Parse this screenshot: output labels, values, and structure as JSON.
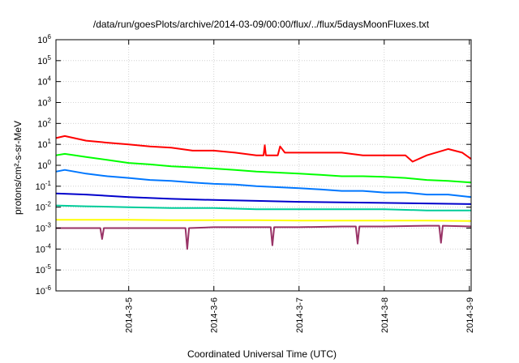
{
  "chart_data": {
    "type": "line",
    "title": "/data/run/goesPlots/archive/2014-03-09/00:00/flux/../flux/5daysMoonFluxes.txt",
    "xlabel": "Coordinated Universal Time (UTC)",
    "ylabel": "protons/cm²-s-sr-MeV",
    "y_scale": "log",
    "ylim": [
      1e-06,
      1000000.0
    ],
    "xlim": [
      "2014-03-04 03:30",
      "2014-03-09 00:30"
    ],
    "grid": true,
    "legend": "none",
    "x_ticks": [
      "2014-3-5",
      "2014-3-6",
      "2014-3-7",
      "2014-3-8",
      "2014-3-9"
    ],
    "y_ticks": [
      {
        "base": "10",
        "exp": "6"
      },
      {
        "base": "10",
        "exp": "5"
      },
      {
        "base": "10",
        "exp": "4"
      },
      {
        "base": "10",
        "exp": "3"
      },
      {
        "base": "10",
        "exp": "2"
      },
      {
        "base": "10",
        "exp": "1"
      },
      {
        "base": "10",
        "exp": "0"
      },
      {
        "base": "10",
        "exp": "-1"
      },
      {
        "base": "10",
        "exp": "-2"
      },
      {
        "base": "10",
        "exp": "-3"
      },
      {
        "base": "10",
        "exp": "-4"
      },
      {
        "base": "10",
        "exp": "-5"
      },
      {
        "base": "10",
        "exp": "-6"
      }
    ],
    "series": [
      {
        "color": "#ff0000",
        "x": [
          "2014-03-04 03:30",
          "2014-03-04 06:00",
          "2014-03-04 12:00",
          "2014-03-04 18:00",
          "2014-03-05 00:00",
          "2014-03-05 06:00",
          "2014-03-05 12:00",
          "2014-03-05 18:00",
          "2014-03-06 00:00",
          "2014-03-06 06:00",
          "2014-03-06 12:00",
          "2014-03-06 14:00",
          "2014-03-06 14:20",
          "2014-03-06 14:40",
          "2014-03-06 18:00",
          "2014-03-06 18:40",
          "2014-03-06 20:00",
          "2014-03-07 00:00",
          "2014-03-07 06:00",
          "2014-03-07 12:00",
          "2014-03-07 18:00",
          "2014-03-08 00:00",
          "2014-03-08 06:00",
          "2014-03-08 08:00",
          "2014-03-08 12:00",
          "2014-03-08 18:00",
          "2014-03-08 22:00",
          "2014-03-09 00:30"
        ],
        "y": [
          20,
          25,
          15,
          12,
          10,
          8,
          7,
          5,
          5,
          4,
          3,
          3,
          9,
          3,
          3,
          8,
          4,
          4,
          4,
          4,
          3,
          3,
          3,
          1.5,
          3,
          6,
          4,
          2
        ]
      },
      {
        "color": "#00ff00",
        "x": [
          "2014-03-04 03:30",
          "2014-03-04 06:00",
          "2014-03-04 12:00",
          "2014-03-04 18:00",
          "2014-03-05 00:00",
          "2014-03-05 06:00",
          "2014-03-05 12:00",
          "2014-03-05 18:00",
          "2014-03-06 00:00",
          "2014-03-06 06:00",
          "2014-03-06 12:00",
          "2014-03-06 18:00",
          "2014-03-07 00:00",
          "2014-03-07 06:00",
          "2014-03-07 12:00",
          "2014-03-07 18:00",
          "2014-03-08 00:00",
          "2014-03-08 06:00",
          "2014-03-08 12:00",
          "2014-03-08 18:00",
          "2014-03-09 00:30"
        ],
        "y": [
          3,
          3.5,
          2.5,
          1.8,
          1.3,
          1.1,
          0.9,
          0.8,
          0.7,
          0.6,
          0.5,
          0.45,
          0.4,
          0.35,
          0.3,
          0.3,
          0.28,
          0.25,
          0.2,
          0.18,
          0.15
        ]
      },
      {
        "color": "#0077ff",
        "x": [
          "2014-03-04 03:30",
          "2014-03-04 06:00",
          "2014-03-04 12:00",
          "2014-03-04 18:00",
          "2014-03-05 00:00",
          "2014-03-05 06:00",
          "2014-03-05 12:00",
          "2014-03-05 18:00",
          "2014-03-06 00:00",
          "2014-03-06 06:00",
          "2014-03-06 12:00",
          "2014-03-06 18:00",
          "2014-03-07 00:00",
          "2014-03-07 06:00",
          "2014-03-07 12:00",
          "2014-03-07 18:00",
          "2014-03-08 00:00",
          "2014-03-08 06:00",
          "2014-03-08 12:00",
          "2014-03-08 18:00",
          "2014-03-09 00:30"
        ],
        "y": [
          0.5,
          0.6,
          0.4,
          0.3,
          0.25,
          0.2,
          0.18,
          0.15,
          0.13,
          0.12,
          0.1,
          0.09,
          0.08,
          0.07,
          0.06,
          0.06,
          0.05,
          0.05,
          0.04,
          0.04,
          0.03
        ]
      },
      {
        "color": "#0000cc",
        "x": [
          "2014-03-04 03:30",
          "2014-03-04 12:00",
          "2014-03-05 00:00",
          "2014-03-05 12:00",
          "2014-03-06 00:00",
          "2014-03-06 12:00",
          "2014-03-07 00:00",
          "2014-03-07 12:00",
          "2014-03-08 00:00",
          "2014-03-08 12:00",
          "2014-03-09 00:30"
        ],
        "y": [
          0.045,
          0.04,
          0.03,
          0.025,
          0.022,
          0.02,
          0.018,
          0.017,
          0.016,
          0.015,
          0.014
        ]
      },
      {
        "color": "#00cc99",
        "x": [
          "2014-03-04 03:30",
          "2014-03-04 12:00",
          "2014-03-05 00:00",
          "2014-03-05 12:00",
          "2014-03-06 00:00",
          "2014-03-06 12:00",
          "2014-03-07 00:00",
          "2014-03-07 12:00",
          "2014-03-08 00:00",
          "2014-03-08 12:00",
          "2014-03-09 00:30"
        ],
        "y": [
          0.012,
          0.011,
          0.01,
          0.009,
          0.009,
          0.008,
          0.008,
          0.008,
          0.008,
          0.007,
          0.007
        ]
      },
      {
        "color": "#ffff00",
        "x": [
          "2014-03-04 03:30",
          "2014-03-04 12:00",
          "2014-03-05 00:00",
          "2014-03-05 12:00",
          "2014-03-06 00:00",
          "2014-03-06 12:00",
          "2014-03-07 00:00",
          "2014-03-07 12:00",
          "2014-03-08 00:00",
          "2014-03-08 12:00",
          "2014-03-09 00:30"
        ],
        "y": [
          0.0025,
          0.0025,
          0.0025,
          0.0024,
          0.0024,
          0.0024,
          0.0023,
          0.0023,
          0.0023,
          0.0023,
          0.0022
        ]
      },
      {
        "color": "#993366",
        "x": [
          "2014-03-04 03:30",
          "2014-03-04 12:00",
          "2014-03-04 16:00",
          "2014-03-04 16:30",
          "2014-03-04 17:00",
          "2014-03-05 00:00",
          "2014-03-05 12:00",
          "2014-03-05 16:00",
          "2014-03-05 16:30",
          "2014-03-05 17:00",
          "2014-03-06 00:00",
          "2014-03-06 12:00",
          "2014-03-06 16:00",
          "2014-03-06 16:30",
          "2014-03-06 17:00",
          "2014-03-07 00:00",
          "2014-03-07 12:00",
          "2014-03-07 16:00",
          "2014-03-07 16:30",
          "2014-03-07 17:00",
          "2014-03-08 00:00",
          "2014-03-08 12:00",
          "2014-03-08 15:30",
          "2014-03-08 16:00",
          "2014-03-08 16:30",
          "2014-03-09 00:30"
        ],
        "y": [
          0.001,
          0.001,
          0.001,
          0.0003,
          0.001,
          0.001,
          0.001,
          0.001,
          0.0001,
          0.001,
          0.0011,
          0.0011,
          0.0011,
          0.00015,
          0.0011,
          0.0011,
          0.0012,
          0.0012,
          0.00018,
          0.0012,
          0.0012,
          0.0013,
          0.0013,
          0.0002,
          0.0013,
          0.0012
        ]
      }
    ]
  }
}
